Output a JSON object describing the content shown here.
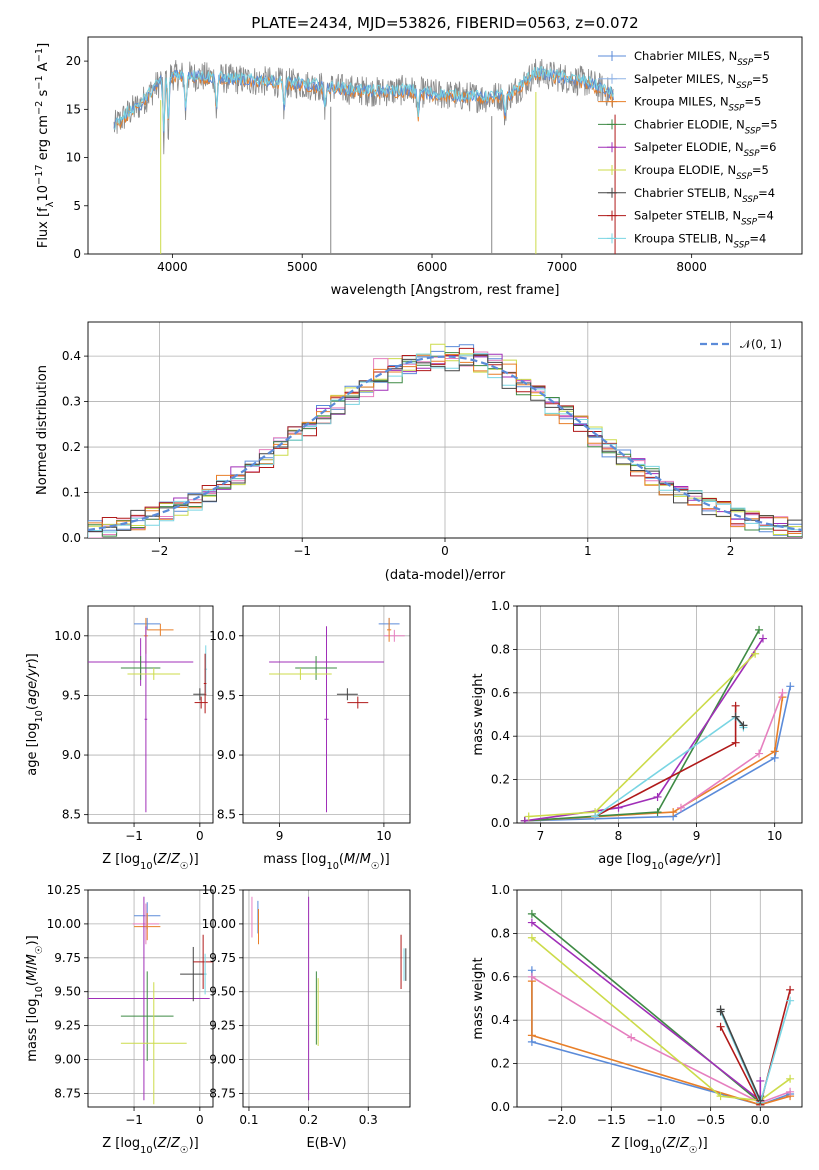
{
  "colors": {
    "chabrier_miles": "#5b8bd9",
    "salpeter_miles": "#8fb3e6",
    "kroupa_miles": "#e87f29",
    "chabrier_elodie": "#3e8a44",
    "salpeter_elodie": "#a02fb8",
    "kroupa_elodie": "#ccdb4a",
    "chabrier_stelib": "#444444",
    "salpeter_stelib": "#b01a1a",
    "kroupa_stelib": "#79d5e3",
    "pink": "#e67fbf",
    "grid": "#b0b0b0"
  },
  "chart_data": [
    {
      "id": "spectrum",
      "type": "line",
      "title": "PLATE=2434, MJD=53826, FIBERID=0563, z=0.072",
      "xlabel": "wavelength [Angstrom, rest frame]",
      "ylabel": "Flux [f_λ 10^-17 erg cm^-2 s^-1 A^-1]",
      "xlim": [
        3350,
        8850
      ],
      "ylim": [
        0,
        22.5
      ],
      "xticks": [
        4000,
        5000,
        6000,
        7000,
        8000
      ],
      "yticks": [
        0,
        5,
        10,
        15,
        20
      ],
      "grid": false,
      "legend_position": "top-right",
      "legend": [
        {
          "label": "Chabrier MILES, N_SSP=5",
          "text": "Chabrier MILES, N",
          "sub": "SSP",
          "tail": "=5",
          "color_key": "chabrier_miles"
        },
        {
          "label": "Salpeter MILES, N_SSP=5",
          "text": "Salpeter MILES, N",
          "sub": "SSP",
          "tail": "=5",
          "color_key": "salpeter_miles"
        },
        {
          "label": "Kroupa MILES, N_SSP=5",
          "text": "Kroupa MILES, N",
          "sub": "SSP",
          "tail": "=5",
          "color_key": "kroupa_miles"
        },
        {
          "label": "Chabrier ELODIE, N_SSP=5",
          "text": "Chabrier ELODIE, N",
          "sub": "SSP",
          "tail": "=5",
          "color_key": "chabrier_elodie"
        },
        {
          "label": "Salpeter ELODIE, N_SSP=6",
          "text": "Salpeter ELODIE, N",
          "sub": "SSP",
          "tail": "=6",
          "color_key": "salpeter_elodie"
        },
        {
          "label": "Kroupa ELODIE, N_SSP=5",
          "text": "Kroupa ELODIE, N",
          "sub": "SSP",
          "tail": "=5",
          "color_key": "kroupa_elodie"
        },
        {
          "label": "Chabrier STELIB, N_SSP=4",
          "text": "Chabrier STELIB, N",
          "sub": "SSP",
          "tail": "=4",
          "color_key": "chabrier_stelib"
        },
        {
          "label": "Salpeter STELIB, N_SSP=4",
          "text": "Salpeter STELIB, N",
          "sub": "SSP",
          "tail": "=4",
          "color_key": "salpeter_stelib"
        },
        {
          "label": "Kroupa STELIB, N_SSP=4",
          "text": "Kroupa STELIB, N",
          "sub": "SSP",
          "tail": "=4",
          "color_key": "kroupa_stelib"
        }
      ],
      "data_profile": {
        "wavelength": [
          3550,
          3650,
          3750,
          3850,
          3950,
          4050,
          4200,
          4400,
          4600,
          4800,
          5000,
          5200,
          5400,
          5600,
          5800,
          6000,
          6200,
          6400,
          6600,
          6800,
          7000,
          7200,
          7400,
          7600
        ],
        "flux": [
          13.2,
          14.5,
          15.5,
          17.0,
          18.6,
          18.5,
          18.4,
          18.2,
          18.0,
          17.8,
          17.6,
          17.3,
          17.0,
          16.8,
          17.0,
          16.6,
          16.4,
          16.2,
          16.5,
          18.8,
          18.3,
          17.8,
          16.5,
          15.5
        ]
      }
    },
    {
      "id": "residuals",
      "type": "bar",
      "xlabel": "(data-model)/error",
      "ylabel": "Normed distribution",
      "xlim": [
        -2.5,
        2.5
      ],
      "ylim": [
        0,
        0.475
      ],
      "xticks": [
        -2,
        -1,
        0,
        1,
        2
      ],
      "yticks": [
        0.0,
        0.1,
        0.2,
        0.3,
        0.4
      ],
      "grid": true,
      "legend_position": "top-right",
      "legend": [
        {
          "label": "N(0,1)",
          "text": "𝒩(0, 1)",
          "color_key": "chabrier_miles"
        }
      ],
      "gaussian": {
        "mean": 0,
        "sigma": 1
      },
      "bin_width": 0.1
    },
    {
      "id": "age_vs_Z",
      "type": "scatter",
      "xlabel": "Z [log10(Z/Z☉)]",
      "ylabel": "age  [log10(age/yr)]",
      "xlim": [
        -1.7,
        0.2
      ],
      "ylim": [
        8.43,
        10.25
      ],
      "xticks": [
        -1,
        0
      ],
      "yticks": [
        8.5,
        9.0,
        9.5,
        10.0
      ],
      "grid": true,
      "points": [
        {
          "x": -0.8,
          "y": 10.1,
          "xerr": 0.2,
          "yerr": 0.05,
          "color_key": "chabrier_miles"
        },
        {
          "x": -0.6,
          "y": 10.05,
          "xerr": 0.2,
          "yerr": 0.05,
          "color_key": "kroupa_miles"
        },
        {
          "x": -0.82,
          "y": 10.0,
          "xerr": 0.03,
          "yerr": 0.15,
          "color_key": "kroupa_miles"
        },
        {
          "x": -0.9,
          "y": 9.78,
          "xerr": 0.8,
          "yerr": 0.2,
          "color_key": "salpeter_elodie"
        },
        {
          "x": -0.82,
          "y": 9.3,
          "xerr": 0.02,
          "yerr": 0.78,
          "color_key": "salpeter_elodie"
        },
        {
          "x": -0.9,
          "y": 9.73,
          "xerr": 0.3,
          "yerr": 0.1,
          "color_key": "chabrier_elodie"
        },
        {
          "x": -0.7,
          "y": 9.68,
          "xerr": 0.4,
          "yerr": 0.05,
          "color_key": "kroupa_elodie"
        },
        {
          "x": 0.0,
          "y": 9.51,
          "xerr": 0.1,
          "yerr": 0.05,
          "color_key": "chabrier_stelib"
        },
        {
          "x": 0.02,
          "y": 9.44,
          "xerr": 0.1,
          "yerr": 0.05,
          "color_key": "salpeter_stelib"
        },
        {
          "x": 0.09,
          "y": 9.72,
          "xerr": 0.02,
          "yerr": 0.2,
          "color_key": "kroupa_stelib"
        },
        {
          "x": 0.08,
          "y": 9.6,
          "xerr": 0.02,
          "yerr": 0.25,
          "color_key": "salpeter_stelib"
        }
      ]
    },
    {
      "id": "age_vs_mass",
      "type": "scatter",
      "xlabel": "mass [log10(M/M☉)]",
      "ylabel": "",
      "xlim": [
        8.65,
        10.25
      ],
      "ylim": [
        8.43,
        10.25
      ],
      "xticks": [
        9,
        10
      ],
      "yticks": [
        8.5,
        9.0,
        9.5,
        10.0
      ],
      "grid": true,
      "points": [
        {
          "x": 10.05,
          "y": 10.1,
          "xerr": 0.1,
          "yerr": 0.05,
          "color_key": "chabrier_miles"
        },
        {
          "x": 10.1,
          "y": 10.0,
          "xerr": 0.1,
          "yerr": 0.05,
          "color_key": "pink"
        },
        {
          "x": 10.05,
          "y": 10.05,
          "xerr": 0.02,
          "yerr": 0.1,
          "color_key": "kroupa_miles"
        },
        {
          "x": 9.45,
          "y": 9.78,
          "xerr": 0.55,
          "yerr": 0.2,
          "color_key": "salpeter_elodie"
        },
        {
          "x": 9.45,
          "y": 9.3,
          "xerr": 0.02,
          "yerr": 0.78,
          "color_key": "salpeter_elodie"
        },
        {
          "x": 9.35,
          "y": 9.73,
          "xerr": 0.2,
          "yerr": 0.1,
          "color_key": "chabrier_elodie"
        },
        {
          "x": 9.2,
          "y": 9.68,
          "xerr": 0.3,
          "yerr": 0.05,
          "color_key": "kroupa_elodie"
        },
        {
          "x": 9.65,
          "y": 9.51,
          "xerr": 0.1,
          "yerr": 0.05,
          "color_key": "chabrier_stelib"
        },
        {
          "x": 9.75,
          "y": 9.44,
          "xerr": 0.1,
          "yerr": 0.05,
          "color_key": "salpeter_stelib"
        }
      ]
    },
    {
      "id": "weight_vs_age",
      "type": "line",
      "xlabel": "age  [log10(age/yr)]",
      "ylabel": "mass weight",
      "xlim": [
        6.7,
        10.35
      ],
      "ylim": [
        0,
        1.0
      ],
      "xticks": [
        7,
        8,
        9,
        10
      ],
      "yticks": [
        0.0,
        0.2,
        0.4,
        0.6,
        0.8,
        1.0
      ],
      "grid": true,
      "series": [
        {
          "color_key": "chabrier_miles",
          "x": [
            6.8,
            8.7,
            10.0,
            10.2
          ],
          "y": [
            0.01,
            0.03,
            0.3,
            0.63
          ]
        },
        {
          "color_key": "kroupa_miles",
          "x": [
            6.8,
            8.7,
            10.0,
            10.1
          ],
          "y": [
            0.01,
            0.05,
            0.33,
            0.58
          ]
        },
        {
          "color_key": "chabrier_elodie",
          "x": [
            6.8,
            8.5,
            9.8
          ],
          "y": [
            0.01,
            0.05,
            0.89
          ]
        },
        {
          "color_key": "salpeter_elodie",
          "x": [
            6.8,
            8.0,
            8.5,
            9.85
          ],
          "y": [
            0.01,
            0.07,
            0.12,
            0.85
          ]
        },
        {
          "color_key": "kroupa_elodie",
          "x": [
            6.85,
            7.7,
            9.75
          ],
          "y": [
            0.03,
            0.05,
            0.78
          ]
        },
        {
          "color_key": "salpeter_stelib",
          "x": [
            7.7,
            9.5,
            9.5
          ],
          "y": [
            0.03,
            0.37,
            0.54
          ]
        },
        {
          "color_key": "kroupa_stelib",
          "x": [
            7.7,
            9.5,
            9.6
          ],
          "y": [
            0.03,
            0.49,
            0.44
          ]
        },
        {
          "color_key": "chabrier_stelib",
          "x": [
            9.5,
            9.6
          ],
          "y": [
            0.49,
            0.45
          ]
        },
        {
          "color_key": "pink",
          "x": [
            8.8,
            9.8,
            10.1
          ],
          "y": [
            0.07,
            0.32,
            0.6
          ]
        }
      ]
    },
    {
      "id": "mass_vs_Z",
      "type": "scatter",
      "xlabel": "Z [log10(Z/Z☉)]",
      "ylabel": "mass [log10(M/M☉)]",
      "xlim": [
        -1.7,
        0.2
      ],
      "ylim": [
        8.65,
        10.25
      ],
      "xticks": [
        -1,
        0
      ],
      "yticks": [
        8.75,
        9.0,
        9.25,
        9.5,
        9.75,
        10.0,
        10.25
      ],
      "grid": true,
      "points": [
        {
          "x": -0.8,
          "y": 10.06,
          "xerr": 0.2,
          "yerr": 0.1,
          "color_key": "chabrier_miles"
        },
        {
          "x": -0.82,
          "y": 10.0,
          "xerr": 0.2,
          "yerr": 0.15,
          "color_key": "pink"
        },
        {
          "x": -0.8,
          "y": 9.98,
          "xerr": 0.2,
          "yerr": 0.1,
          "color_key": "kroupa_miles"
        },
        {
          "x": -0.85,
          "y": 9.45,
          "xerr": 1.0,
          "yerr": 0.75,
          "color_key": "salpeter_elodie"
        },
        {
          "x": -0.8,
          "y": 9.32,
          "xerr": 0.4,
          "yerr": 0.33,
          "color_key": "chabrier_elodie"
        },
        {
          "x": -0.7,
          "y": 9.12,
          "xerr": 0.5,
          "yerr": 0.45,
          "color_key": "kroupa_elodie"
        },
        {
          "x": -0.1,
          "y": 9.63,
          "xerr": 0.2,
          "yerr": 0.2,
          "color_key": "chabrier_stelib"
        },
        {
          "x": 0.05,
          "y": 9.72,
          "xerr": 0.15,
          "yerr": 0.2,
          "color_key": "salpeter_stelib"
        },
        {
          "x": 0.08,
          "y": 9.63,
          "xerr": 0.02,
          "yerr": 0.15,
          "color_key": "kroupa_stelib"
        }
      ]
    },
    {
      "id": "mass_vs_ebv",
      "type": "scatter",
      "xlabel": "E(B-V)",
      "ylabel": "",
      "xlim": [
        0.09,
        0.37
      ],
      "ylim": [
        8.65,
        10.25
      ],
      "xticks": [
        0.1,
        0.2,
        0.3
      ],
      "yticks": [
        8.75,
        9.0,
        9.25,
        9.5,
        9.75,
        10.0,
        10.25
      ],
      "grid": true,
      "points": [
        {
          "x": 0.105,
          "y": 10.05,
          "xerr": 0,
          "yerr": 0.15,
          "color_key": "pink"
        },
        {
          "x": 0.115,
          "y": 10.05,
          "xerr": 0,
          "yerr": 0.12,
          "color_key": "chabrier_miles"
        },
        {
          "x": 0.116,
          "y": 9.98,
          "xerr": 0,
          "yerr": 0.13,
          "color_key": "kroupa_miles"
        },
        {
          "x": 0.2,
          "y": 9.45,
          "xerr": 0,
          "yerr": 0.75,
          "color_key": "salpeter_elodie"
        },
        {
          "x": 0.213,
          "y": 9.38,
          "xerr": 0,
          "yerr": 0.27,
          "color_key": "chabrier_elodie"
        },
        {
          "x": 0.216,
          "y": 9.35,
          "xerr": 0,
          "yerr": 0.25,
          "color_key": "kroupa_elodie"
        },
        {
          "x": 0.355,
          "y": 9.72,
          "xerr": 0,
          "yerr": 0.2,
          "color_key": "salpeter_stelib"
        },
        {
          "x": 0.36,
          "y": 9.7,
          "xerr": 0,
          "yerr": 0.12,
          "color_key": "kroupa_stelib"
        },
        {
          "x": 0.363,
          "y": 9.7,
          "xerr": 0,
          "yerr": 0.12,
          "color_key": "chabrier_stelib"
        }
      ]
    },
    {
      "id": "weight_vs_Z",
      "type": "line",
      "xlabel": "Z [log10(Z/Z☉)]",
      "ylabel": "mass weight",
      "xlim": [
        -2.45,
        0.42
      ],
      "ylim": [
        0,
        1.0
      ],
      "xticks": [
        -2.0,
        -1.5,
        -1.0,
        -0.5,
        0.0
      ],
      "yticks": [
        0.0,
        0.2,
        0.4,
        0.6,
        0.8,
        1.0
      ],
      "grid": true,
      "series": [
        {
          "color_key": "chabrier_miles",
          "x": [
            -2.3,
            -2.3,
            0.0,
            0.3
          ],
          "y": [
            0.63,
            0.3,
            0.01,
            0.06
          ]
        },
        {
          "color_key": "kroupa_miles",
          "x": [
            -2.3,
            -2.3,
            0.0,
            0.3
          ],
          "y": [
            0.58,
            0.33,
            0.01,
            0.05
          ]
        },
        {
          "color_key": "pink",
          "x": [
            -2.3,
            -1.3,
            0.0,
            0.3
          ],
          "y": [
            0.6,
            0.32,
            0.02,
            0.07
          ]
        },
        {
          "color_key": "chabrier_elodie",
          "x": [
            -2.3,
            0.0,
            0.0
          ],
          "y": [
            0.89,
            0.02,
            0.05
          ]
        },
        {
          "color_key": "salpeter_elodie",
          "x": [
            -2.3,
            0.0,
            0.0
          ],
          "y": [
            0.85,
            0.03,
            0.12
          ]
        },
        {
          "color_key": "kroupa_elodie",
          "x": [
            -2.3,
            -0.4,
            0.0,
            0.3
          ],
          "y": [
            0.78,
            0.05,
            0.03,
            0.13
          ]
        },
        {
          "color_key": "salpeter_stelib",
          "x": [
            -0.4,
            0.0,
            0.3
          ],
          "y": [
            0.37,
            0.01,
            0.54
          ]
        },
        {
          "color_key": "kroupa_stelib",
          "x": [
            -0.4,
            0.0,
            0.3
          ],
          "y": [
            0.44,
            0.02,
            0.49
          ]
        },
        {
          "color_key": "chabrier_stelib",
          "x": [
            -0.4,
            -0.4,
            0.0
          ],
          "y": [
            0.44,
            0.45,
            0.03
          ]
        }
      ]
    }
  ]
}
